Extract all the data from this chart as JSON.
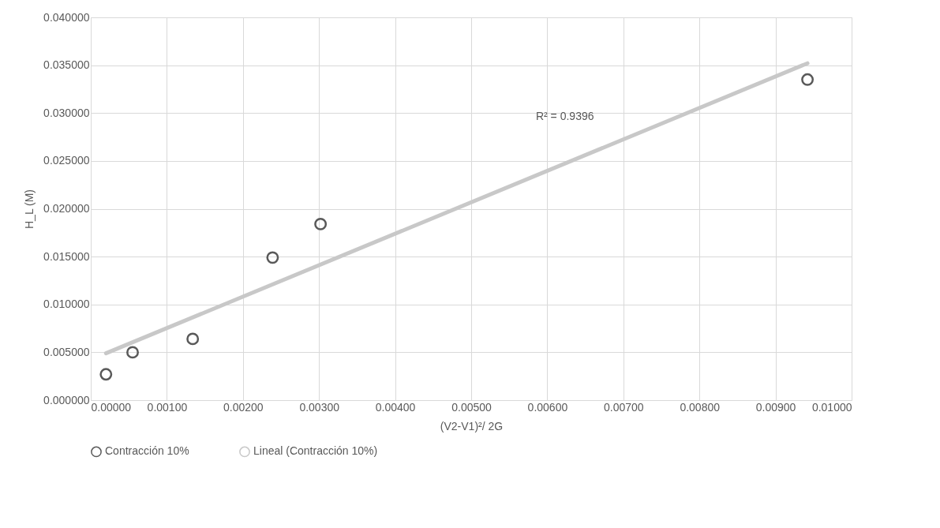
{
  "chart_data": {
    "type": "scatter",
    "xlabel": "(V2-V1)²/ 2G",
    "ylabel": "H_L (M)",
    "xlim": [
      0,
      0.01
    ],
    "xticks": [
      {
        "value": 0,
        "label": "0.00000"
      },
      {
        "value": 0.001,
        "label": "0.00100"
      },
      {
        "value": 0.002,
        "label": "0.00200"
      },
      {
        "value": 0.003,
        "label": "0.00300"
      },
      {
        "value": 0.004,
        "label": "0.00400"
      },
      {
        "value": 0.005,
        "label": "0.00500"
      },
      {
        "value": 0.006,
        "label": "0.00600"
      },
      {
        "value": 0.007,
        "label": "0.00700"
      },
      {
        "value": 0.008,
        "label": "0.00800"
      },
      {
        "value": 0.009,
        "label": "0.00900"
      },
      {
        "value": 0.01,
        "label": "0.01000"
      }
    ],
    "ylim": [
      0,
      0.04
    ],
    "yticks": [
      {
        "value": 0,
        "label": "0.000000"
      },
      {
        "value": 0.005,
        "label": "0.005000"
      },
      {
        "value": 0.01,
        "label": "0.010000"
      },
      {
        "value": 0.015,
        "label": "0.015000"
      },
      {
        "value": 0.02,
        "label": "0.020000"
      },
      {
        "value": 0.025,
        "label": "0.025000"
      },
      {
        "value": 0.03,
        "label": "0.030000"
      },
      {
        "value": 0.035,
        "label": "0.035000"
      },
      {
        "value": 0.04,
        "label": "0.040000"
      }
    ],
    "grid": true,
    "legend": "bottom",
    "annotations": [
      "R² = 0.9396"
    ],
    "series": [
      {
        "name": "Contracción 10%",
        "type": "scatter",
        "color": "#595959",
        "x": [
          0.0002,
          0.00055,
          0.00134,
          0.00239,
          0.00302,
          0.00942
        ],
        "values": [
          0.0027,
          0.005,
          0.0064,
          0.0149,
          0.0184,
          0.0335
        ],
        "marker": "circle"
      },
      {
        "name": "Lineal (Contracción 10%)",
        "type": "line",
        "color": "#c8c8c8",
        "x": [
          0.0002,
          0.00942
        ],
        "values": [
          0.0049,
          0.0352
        ],
        "marker": "none"
      }
    ]
  }
}
